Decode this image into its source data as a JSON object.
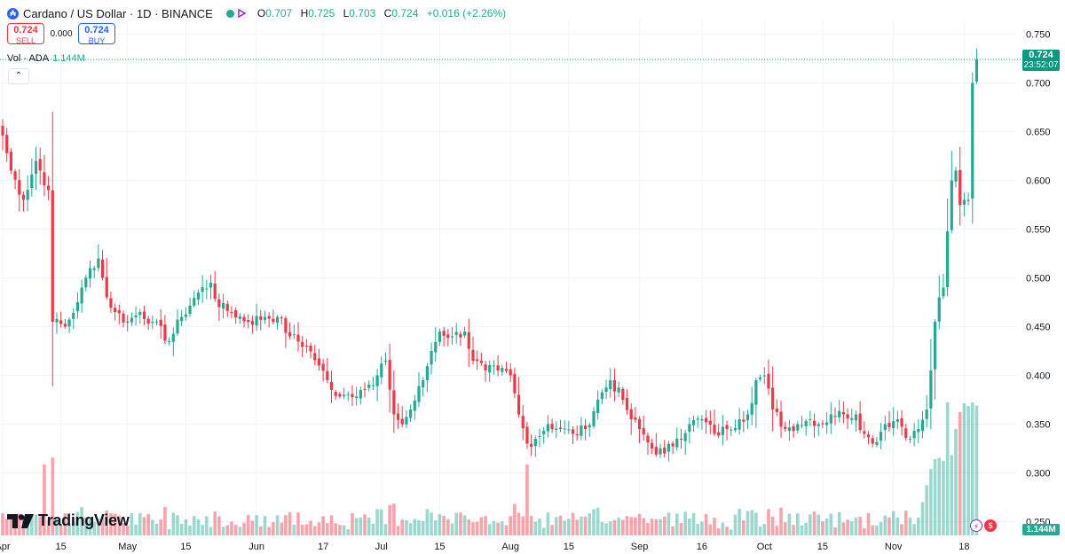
{
  "header": {
    "symbol_icon": "cardano-icon",
    "symbol_letter": "₳",
    "title": "Cardano / US Dollar · 1D · BINANCE",
    "ohlc": {
      "o_label": "O",
      "o": "0.707",
      "h_label": "H",
      "h": "0.725",
      "l_label": "L",
      "l": "0.703",
      "c_label": "C",
      "c": "0.724",
      "change": "+0.016 (+2.26%)"
    }
  },
  "trade": {
    "sell_price": "0.724",
    "sell_label": "SELL",
    "spread": "0.000",
    "buy_price": "0.724",
    "buy_label": "BUY"
  },
  "volume_legend": {
    "label": "Vol · ADA",
    "value": "1.144M"
  },
  "last_price": {
    "price": "0.724",
    "countdown": "23:52:07"
  },
  "last_volume": "1.144M",
  "logo_text": "TradingView",
  "colors": {
    "up": "#22ab94",
    "down": "#f23645",
    "up_vol": "#22ab94",
    "down_vol": "#f23645",
    "grid": "#f0f3fa",
    "axis_text": "#131722"
  },
  "chart_data": {
    "type": "candlestick",
    "title": "Cardano / US Dollar · 1D · BINANCE",
    "ylim": [
      0.235,
      0.765
    ],
    "y_ticks": [
      "0.750",
      "0.700",
      "0.650",
      "0.600",
      "0.550",
      "0.500",
      "0.450",
      "0.400",
      "0.350",
      "0.300",
      "0.250"
    ],
    "x_ticks": [
      {
        "label": "Apr",
        "day": 0
      },
      {
        "label": "15",
        "day": 14
      },
      {
        "label": "May",
        "day": 30
      },
      {
        "label": "15",
        "day": 44
      },
      {
        "label": "Jun",
        "day": 61
      },
      {
        "label": "17",
        "day": 77
      },
      {
        "label": "Jul",
        "day": 91
      },
      {
        "label": "15",
        "day": 105
      },
      {
        "label": "Aug",
        "day": 122
      },
      {
        "label": "15",
        "day": 136
      },
      {
        "label": "Sep",
        "day": 153
      },
      {
        "label": "16",
        "day": 168
      },
      {
        "label": "Oct",
        "day": 183
      },
      {
        "label": "15",
        "day": 197
      },
      {
        "label": "Nov",
        "day": 214
      },
      {
        "label": "18",
        "day": 231
      }
    ],
    "keyframes_close": [
      [
        0,
        0.646
      ],
      [
        2,
        0.61
      ],
      [
        5,
        0.58
      ],
      [
        8,
        0.62
      ],
      [
        11,
        0.59
      ],
      [
        12,
        0.455
      ],
      [
        15,
        0.45
      ],
      [
        18,
        0.475
      ],
      [
        21,
        0.51
      ],
      [
        23,
        0.52
      ],
      [
        25,
        0.48
      ],
      [
        27,
        0.465
      ],
      [
        30,
        0.455
      ],
      [
        33,
        0.465
      ],
      [
        36,
        0.455
      ],
      [
        40,
        0.435
      ],
      [
        43,
        0.46
      ],
      [
        47,
        0.485
      ],
      [
        50,
        0.495
      ],
      [
        52,
        0.47
      ],
      [
        55,
        0.465
      ],
      [
        59,
        0.455
      ],
      [
        63,
        0.46
      ],
      [
        66,
        0.46
      ],
      [
        69,
        0.44
      ],
      [
        73,
        0.43
      ],
      [
        76,
        0.41
      ],
      [
        79,
        0.385
      ],
      [
        82,
        0.38
      ],
      [
        86,
        0.385
      ],
      [
        89,
        0.39
      ],
      [
        92,
        0.415
      ],
      [
        94,
        0.36
      ],
      [
        96,
        0.35
      ],
      [
        98,
        0.365
      ],
      [
        101,
        0.395
      ],
      [
        103,
        0.425
      ],
      [
        105,
        0.445
      ],
      [
        108,
        0.44
      ],
      [
        111,
        0.445
      ],
      [
        113,
        0.415
      ],
      [
        116,
        0.405
      ],
      [
        119,
        0.405
      ],
      [
        122,
        0.4
      ],
      [
        124,
        0.36
      ],
      [
        126,
        0.33
      ],
      [
        128,
        0.335
      ],
      [
        131,
        0.35
      ],
      [
        134,
        0.345
      ],
      [
        137,
        0.34
      ],
      [
        140,
        0.345
      ],
      [
        143,
        0.375
      ],
      [
        146,
        0.395
      ],
      [
        149,
        0.375
      ],
      [
        151,
        0.355
      ],
      [
        153,
        0.345
      ],
      [
        156,
        0.325
      ],
      [
        159,
        0.32
      ],
      [
        162,
        0.335
      ],
      [
        165,
        0.35
      ],
      [
        168,
        0.355
      ],
      [
        171,
        0.34
      ],
      [
        174,
        0.345
      ],
      [
        177,
        0.355
      ],
      [
        179,
        0.36
      ],
      [
        181,
        0.395
      ],
      [
        183,
        0.4
      ],
      [
        185,
        0.365
      ],
      [
        188,
        0.345
      ],
      [
        191,
        0.35
      ],
      [
        194,
        0.355
      ],
      [
        197,
        0.35
      ],
      [
        199,
        0.36
      ],
      [
        202,
        0.36
      ],
      [
        205,
        0.36
      ],
      [
        207,
        0.34
      ],
      [
        209,
        0.33
      ],
      [
        212,
        0.35
      ],
      [
        215,
        0.355
      ],
      [
        218,
        0.335
      ],
      [
        220,
        0.345
      ],
      [
        222,
        0.365
      ],
      [
        223,
        0.405
      ],
      [
        224,
        0.455
      ],
      [
        225,
        0.48
      ],
      [
        226,
        0.49
      ],
      [
        228,
        0.6
      ],
      [
        229,
        0.61
      ],
      [
        230,
        0.575
      ],
      [
        231,
        0.58
      ],
      [
        232,
        0.58
      ],
      [
        233,
        0.7
      ],
      [
        234,
        0.724
      ]
    ],
    "volume_max_day": 221,
    "volume_note": "volume bars shown in lower band; last bar 1.144M"
  }
}
